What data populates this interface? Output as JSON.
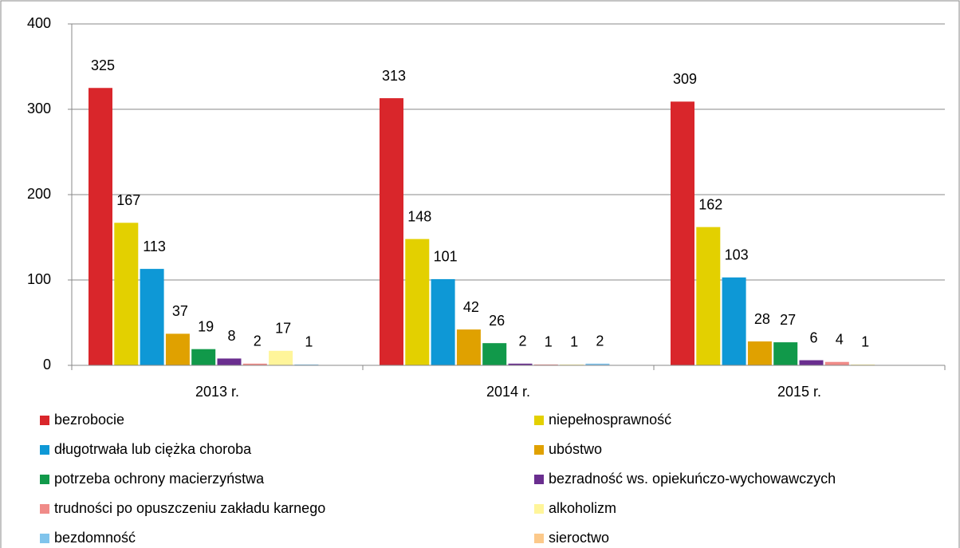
{
  "chart_data": {
    "type": "bar",
    "categories": [
      "2013 r.",
      "2014 r.",
      "2015 r."
    ],
    "series": [
      {
        "name": "bezrobocie",
        "color": "#d9262b",
        "values": [
          325,
          313,
          309
        ]
      },
      {
        "name": "niepełnosprawność",
        "color": "#e3d000",
        "values": [
          167,
          148,
          162
        ]
      },
      {
        "name": "długotrwała lub ciężka choroba",
        "color": "#0e98d6",
        "values": [
          113,
          101,
          103
        ]
      },
      {
        "name": "ubóstwo",
        "color": "#e0a100",
        "values": [
          37,
          42,
          28
        ]
      },
      {
        "name": "potrzeba ochrony macierzyństwa",
        "color": "#11994a",
        "values": [
          19,
          26,
          27
        ]
      },
      {
        "name": "bezradność ws. opiekuńczo-wychowawczych",
        "color": "#6a2e8f",
        "values": [
          8,
          2,
          6
        ]
      },
      {
        "name": "trudności po opuszczeniu zakładu karnego",
        "color": "#f08b88",
        "values": [
          2,
          1,
          4
        ]
      },
      {
        "name": "alkoholizm",
        "color": "#fff59a",
        "values": [
          17,
          1,
          1
        ]
      },
      {
        "name": "bezdomność",
        "color": "#80c4ec",
        "values": [
          1,
          2,
          null
        ]
      },
      {
        "name": "sieroctwo",
        "color": "#fcc98a",
        "values": [
          null,
          null,
          null
        ]
      }
    ],
    "ylim": [
      0,
      400
    ],
    "yticks": [
      0,
      100,
      200,
      300,
      400
    ],
    "grid": true,
    "legend": "bottom"
  }
}
